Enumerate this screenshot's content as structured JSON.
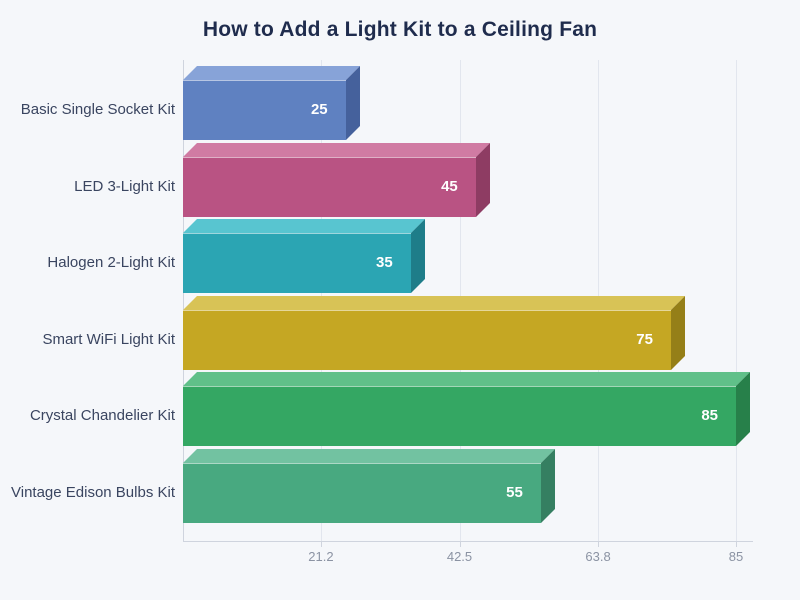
{
  "chart_data": {
    "type": "bar",
    "orientation": "horizontal",
    "effect": "3d",
    "title": "How to Add a Light Kit to a Ceiling Fan",
    "categories": [
      "Basic Single Socket Kit",
      "LED 3-Light Kit",
      "Halogen 2-Light Kit",
      "Smart WiFi Light Kit",
      "Crystal Chandelier Kit",
      "Vintage Edison Bulbs Kit"
    ],
    "values": [
      25,
      45,
      35,
      75,
      85,
      55
    ],
    "value_labels": [
      "25",
      "45",
      "35",
      "75",
      "85",
      "55"
    ],
    "xticks": [
      21.2,
      42.5,
      63.8,
      85
    ],
    "xtick_labels": [
      "21.2",
      "42.5",
      "63.8",
      "85"
    ],
    "xlim": [
      0,
      85
    ],
    "xlabel": "",
    "ylabel": "",
    "grid": true,
    "legend": false,
    "bar_colors": [
      {
        "front": "#5f81c1",
        "top": "#87a3d8",
        "side": "#45619c"
      },
      {
        "front": "#b95383",
        "top": "#d07ba3",
        "side": "#8e3c63"
      },
      {
        "front": "#2ba5b3",
        "top": "#58c5d0",
        "side": "#1e7d89"
      },
      {
        "front": "#c5a723",
        "top": "#d8c356",
        "side": "#957f18"
      },
      {
        "front": "#34a763",
        "top": "#60c089",
        "side": "#27804a"
      },
      {
        "front": "#48a980",
        "top": "#72c2a1",
        "side": "#357f61"
      }
    ]
  },
  "colors": {
    "background": "#f5f7fa",
    "title_text": "#1f2c4d",
    "category_text": "#3a4560",
    "tick_text": "#8b93a3",
    "gridline": "#e2e6ee",
    "axis_line": "#cfd4de",
    "value_text": "#ffffff"
  }
}
